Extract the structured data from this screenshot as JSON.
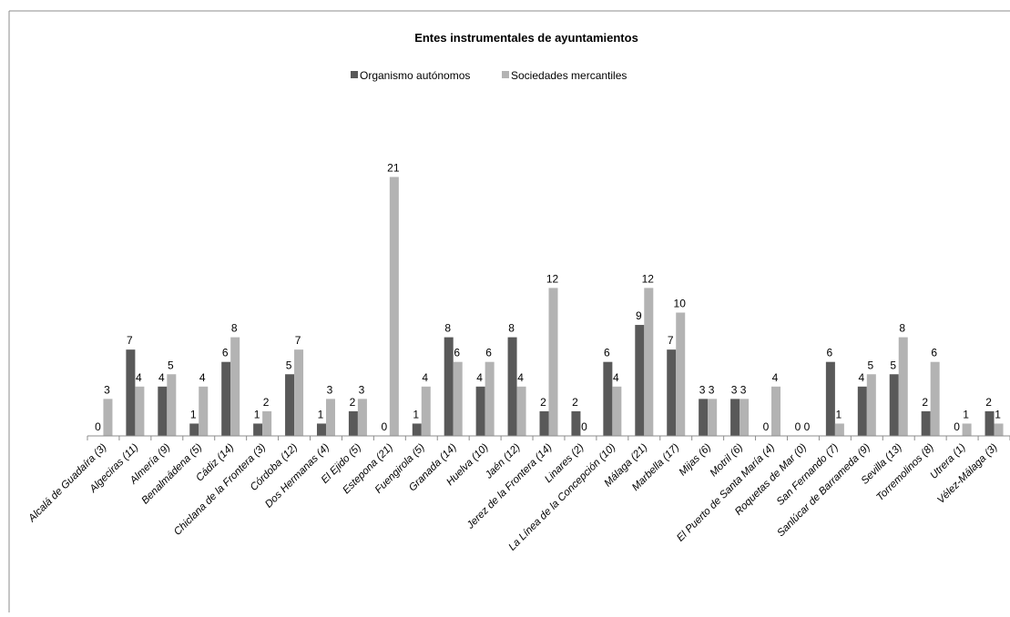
{
  "chart_data": {
    "type": "bar",
    "title": "Entes instrumentales de ayuntamientos",
    "legend_position": "top-center",
    "grid": false,
    "ylim": [
      0,
      22
    ],
    "colors": {
      "series_0": "#595959",
      "series_1": "#b3b3b3"
    },
    "categories": [
      "Alcalá de Guadaíra (3)",
      "Algeciras (11)",
      "Almería (9)",
      "Benalmádena (5)",
      "Cádiz (14)",
      "Chiclana de la Frontera (3)",
      "Córdoba (12)",
      "Dos Hermanas (4)",
      "El Ejido (5)",
      "Estepona (21)",
      "Fuengirola (5)",
      "Granada (14)",
      "Huelva (10)",
      "Jaén (12)",
      "Jerez de la Frontera (14)",
      "Linares (2)",
      "La Línea de la Concepción (10)",
      "Málaga (21)",
      "Marbella (17)",
      "Mijas (6)",
      "Motril (6)",
      "El Puerto de Santa María (4)",
      "Roquetas de Mar (0)",
      "San Fernando (7)",
      "Sanlúcar de Barrameda (9)",
      "Sevilla (13)",
      "Torremolinos (8)",
      "Utrera (1)",
      "Vélez-Málaga (3)"
    ],
    "series": [
      {
        "name": "Organismo autónomos",
        "values": [
          0,
          7,
          4,
          1,
          6,
          1,
          5,
          1,
          2,
          0,
          1,
          8,
          4,
          8,
          2,
          2,
          6,
          9,
          7,
          3,
          3,
          0,
          0,
          6,
          4,
          5,
          2,
          0,
          2
        ]
      },
      {
        "name": "Sociedades mercantiles",
        "values": [
          3,
          4,
          5,
          4,
          8,
          2,
          7,
          3,
          3,
          21,
          4,
          6,
          6,
          4,
          12,
          0,
          4,
          12,
          10,
          3,
          3,
          4,
          0,
          1,
          5,
          8,
          6,
          1,
          1
        ]
      }
    ]
  }
}
